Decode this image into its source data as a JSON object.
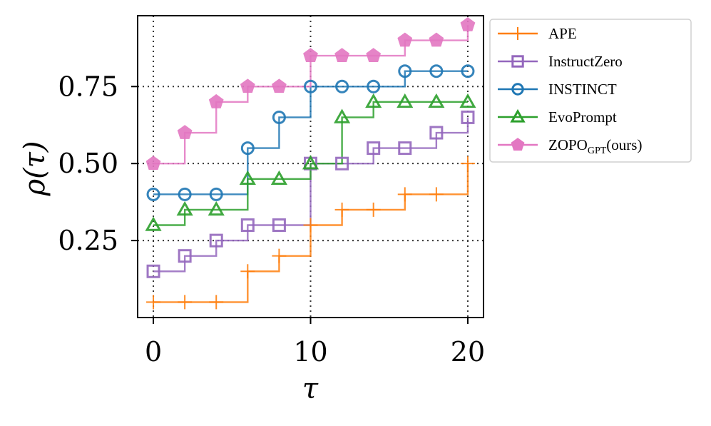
{
  "chart_data": {
    "type": "line",
    "step": "post",
    "xlabel": "τ",
    "ylabel": "ρ(τ)",
    "xlim": [
      -1,
      21
    ],
    "ylim": [
      0.0,
      0.98
    ],
    "xticks": [
      0,
      10,
      20
    ],
    "xtick_labels": [
      "0",
      "10",
      "20"
    ],
    "yticks": [
      0.25,
      0.5,
      0.75
    ],
    "ytick_labels": [
      "0.25",
      "0.50",
      "0.75"
    ],
    "grid": {
      "style": "dotted",
      "x": [
        0,
        10,
        20
      ],
      "y": [
        0.25,
        0.5,
        0.75
      ]
    },
    "legend_position": "outside-right",
    "series": [
      {
        "name": "APE",
        "legend_label": "APE",
        "color": "#ff7f0e",
        "marker": "plus",
        "x": [
          0,
          2,
          4,
          6,
          8,
          10,
          12,
          14,
          16,
          18,
          20
        ],
        "y": [
          0.05,
          0.05,
          0.05,
          0.15,
          0.2,
          0.3,
          0.35,
          0.35,
          0.4,
          0.4,
          0.5
        ],
        "markers_x": [
          0,
          2,
          4,
          6,
          8,
          10,
          12,
          14,
          16,
          18,
          20
        ]
      },
      {
        "name": "InstructZero",
        "legend_label": "InstructZero",
        "color": "#9467bd",
        "marker": "square",
        "x": [
          0,
          2,
          4,
          6,
          8,
          10,
          12,
          14,
          16,
          18,
          20
        ],
        "y": [
          0.15,
          0.2,
          0.25,
          0.3,
          0.3,
          0.5,
          0.5,
          0.55,
          0.55,
          0.6,
          0.65
        ],
        "markers_x": [
          0,
          2,
          4,
          6,
          8,
          10,
          12,
          14,
          16,
          18,
          20
        ]
      },
      {
        "name": "INSTINCT",
        "legend_label": "INSTINCT",
        "color": "#1f77b4",
        "marker": "circle",
        "x": [
          0,
          2,
          4,
          6,
          8,
          10,
          12,
          14,
          16,
          18,
          20
        ],
        "y": [
          0.4,
          0.4,
          0.4,
          0.55,
          0.65,
          0.75,
          0.75,
          0.75,
          0.8,
          0.8,
          0.8
        ],
        "markers_x": [
          0,
          2,
          4,
          6,
          8,
          10,
          12,
          14,
          16,
          18,
          20
        ]
      },
      {
        "name": "EvoPrompt",
        "legend_label": "EvoPrompt",
        "color": "#2ca02c",
        "marker": "triangle",
        "x": [
          0,
          2,
          4,
          6,
          8,
          10,
          12,
          14,
          16,
          18,
          20
        ],
        "y": [
          0.3,
          0.35,
          0.35,
          0.45,
          0.45,
          0.5,
          0.65,
          0.7,
          0.7,
          0.7,
          0.7
        ],
        "markers_x": [
          0,
          2,
          4,
          6,
          8,
          10,
          12,
          14,
          16,
          18,
          20
        ]
      },
      {
        "name": "ZOPO_GPT(ours)",
        "legend_label": "ZOPO",
        "legend_sub": "GPT",
        "legend_suffix": "(ours)",
        "color": "#e377c2",
        "marker": "pentagon",
        "x": [
          0,
          2,
          4,
          6,
          8,
          10,
          12,
          14,
          16,
          18,
          20
        ],
        "y": [
          0.5,
          0.6,
          0.7,
          0.75,
          0.75,
          0.85,
          0.85,
          0.85,
          0.9,
          0.9,
          0.95
        ],
        "markers_x": [
          0,
          2,
          4,
          6,
          8,
          10,
          12,
          14,
          16,
          18,
          20
        ]
      }
    ]
  }
}
